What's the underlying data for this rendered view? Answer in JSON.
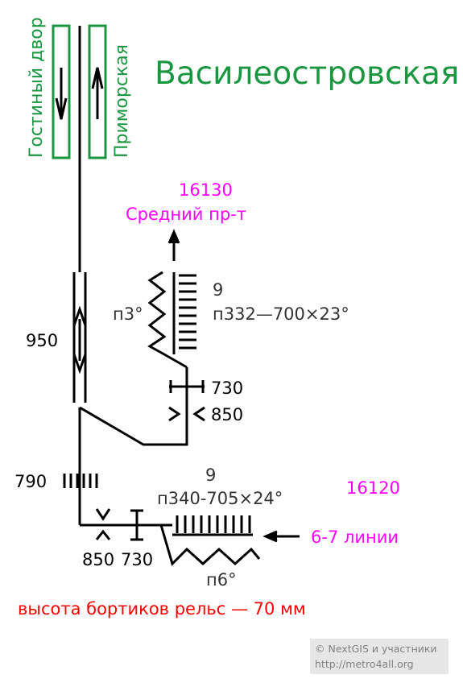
{
  "station": {
    "title": "Василеостровская",
    "directions": {
      "left": "Гостиный двор",
      "right": "Приморская"
    }
  },
  "branch_top": {
    "code": "16130",
    "label": "Средний пр-т",
    "track_count": "9",
    "spec": "п332—700×23°",
    "curve": "п3°"
  },
  "marks": {
    "main_line": "950",
    "branch_gauge": "730",
    "branch_narrow": "850",
    "lower_ties": "790",
    "bottom_narrow": "850",
    "bottom_gauge": "730"
  },
  "branch_bottom": {
    "track_count": "9",
    "spec": "п340-705×24°",
    "code": "16120",
    "label": "6-7 линии",
    "curve": "п6°"
  },
  "note": "высота бортиков рельс — 70 мм",
  "credit": {
    "line1": "© NextGIS и участники",
    "line2": "http://metro4all.org"
  },
  "colors": {
    "green": "#1a9641",
    "magenta": "#ff00ff",
    "red": "#ff0000",
    "line": "#000000",
    "text": "#333333",
    "credit_bg": "#e6e6e6",
    "credit_text": "#808080"
  }
}
